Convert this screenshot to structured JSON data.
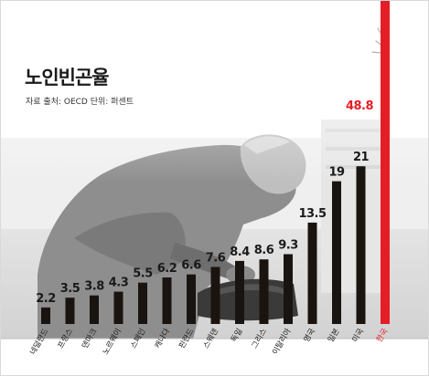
{
  "title": "노인빈곤율",
  "source": "자료 출처: OECD  단위: 퍼센트",
  "colors": {
    "bar": "#1a1410",
    "highlight": "#e41e26",
    "text": "#1a1a1a"
  },
  "chart_data": {
    "type": "bar",
    "title": "노인빈곤율",
    "unit": "퍼센트",
    "categories": [
      "네덜란드",
      "프랑스",
      "덴마크",
      "노르웨이",
      "스페인",
      "캐나다",
      "핀란드",
      "스웨덴",
      "독일",
      "그리스",
      "이탈리아",
      "영국",
      "일본",
      "미국",
      "한국"
    ],
    "values": [
      2.2,
      3.5,
      3.8,
      4.3,
      5.5,
      6.2,
      6.6,
      7.6,
      8.4,
      8.6,
      9.3,
      13.5,
      19,
      21,
      48.8
    ],
    "value_labels": [
      "2.2",
      "3.5",
      "3.8",
      "4.3",
      "5.5",
      "6.2",
      "6.6",
      "7.6",
      "8.4",
      "8.6",
      "9.3",
      "13.5",
      "19",
      "21",
      "48.8"
    ],
    "highlight": "한국",
    "ylim": [
      0,
      48.8
    ],
    "grid": false,
    "legend": "none"
  }
}
